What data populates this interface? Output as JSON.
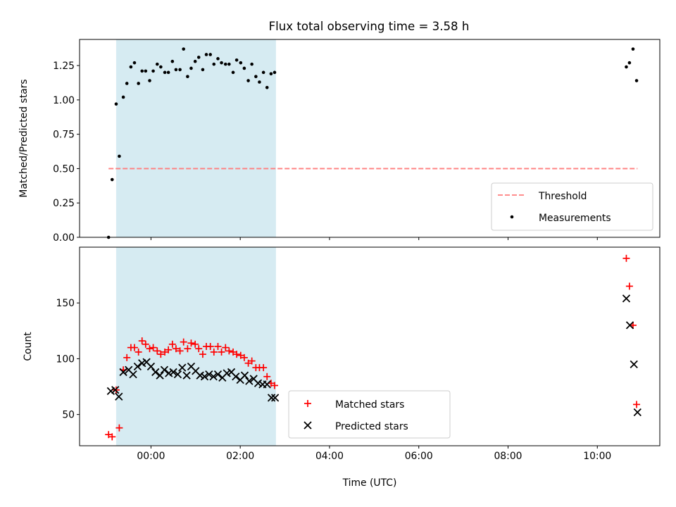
{
  "figure": {
    "title": "Flux total observing time = 3.58 h"
  },
  "colors": {
    "shade": "#add8e6",
    "threshold": "#ff7f7f",
    "matched": "#ff0000",
    "predicted": "#000000",
    "measurement": "#000000"
  },
  "chart_data": [
    {
      "type": "scatter",
      "title": "Flux total observing time = 3.58 h",
      "xlabel": "",
      "ylabel": "Matched/Predicted stars",
      "xlim": [
        -1.6,
        11.4
      ],
      "ylim": [
        0.0,
        1.44
      ],
      "x_tick_values": [
        0,
        2,
        4,
        6,
        8,
        10
      ],
      "x_tick_labels": [
        "",
        "",
        "",
        "",
        "",
        ""
      ],
      "y_tick_values": [
        0.0,
        0.25,
        0.5,
        0.75,
        1.0,
        1.25
      ],
      "y_tick_labels": [
        "0.00",
        "0.25",
        "0.50",
        "0.75",
        "1.00",
        "1.25"
      ],
      "shaded_x_range": [
        -0.78,
        2.8
      ],
      "threshold": {
        "name": "Threshold",
        "y": 0.5,
        "x_range": [
          -0.95,
          10.9
        ]
      },
      "legend": {
        "position": "lower-right",
        "entries": [
          "Threshold",
          "Measurements"
        ]
      },
      "series": [
        {
          "name": "Measurements",
          "marker": "dot",
          "x": [
            -0.95,
            -0.87,
            -0.78,
            -0.71,
            -0.62,
            -0.54,
            -0.45,
            -0.37,
            -0.28,
            -0.2,
            -0.12,
            -0.03,
            0.05,
            0.14,
            0.22,
            0.31,
            0.39,
            0.48,
            0.56,
            0.65,
            0.73,
            0.82,
            0.9,
            0.99,
            1.07,
            1.16,
            1.24,
            1.33,
            1.41,
            1.5,
            1.58,
            1.67,
            1.75,
            1.84,
            1.92,
            2.01,
            2.09,
            2.18,
            2.26,
            2.35,
            2.43,
            2.52,
            2.6,
            2.69,
            2.77,
            10.65,
            10.72,
            10.8,
            10.88
          ],
          "y": [
            0.0,
            0.42,
            0.97,
            0.59,
            1.02,
            1.12,
            1.24,
            1.27,
            1.12,
            1.21,
            1.21,
            1.14,
            1.21,
            1.26,
            1.24,
            1.2,
            1.2,
            1.28,
            1.22,
            1.22,
            1.37,
            1.17,
            1.23,
            1.28,
            1.31,
            1.22,
            1.33,
            1.33,
            1.26,
            1.3,
            1.27,
            1.26,
            1.26,
            1.2,
            1.29,
            1.27,
            1.23,
            1.14,
            1.26,
            1.17,
            1.13,
            1.2,
            1.09,
            1.19,
            1.2,
            1.24,
            1.27,
            1.37,
            1.14
          ]
        }
      ]
    },
    {
      "type": "scatter",
      "title": "",
      "xlabel": "Time (UTC)",
      "ylabel": "Count",
      "xlim": [
        -1.6,
        11.4
      ],
      "ylim": [
        22,
        200
      ],
      "x_tick_values": [
        0,
        2,
        4,
        6,
        8,
        10
      ],
      "x_tick_labels": [
        "00:00",
        "02:00",
        "04:00",
        "06:00",
        "08:00",
        "10:00"
      ],
      "y_tick_values": [
        50,
        100,
        150
      ],
      "y_tick_labels": [
        "50",
        "100",
        "150"
      ],
      "shaded_x_range": [
        -0.78,
        2.8
      ],
      "legend": {
        "position": "lower-center",
        "entries": [
          "Matched stars",
          "Predicted stars"
        ]
      },
      "series": [
        {
          "name": "Matched stars",
          "marker": "plus",
          "x": [
            -0.95,
            -0.87,
            -0.78,
            -0.71,
            -0.62,
            -0.54,
            -0.45,
            -0.37,
            -0.28,
            -0.2,
            -0.12,
            -0.03,
            0.05,
            0.14,
            0.22,
            0.31,
            0.39,
            0.48,
            0.56,
            0.65,
            0.73,
            0.82,
            0.9,
            0.99,
            1.07,
            1.16,
            1.24,
            1.33,
            1.41,
            1.5,
            1.58,
            1.67,
            1.75,
            1.84,
            1.92,
            2.01,
            2.09,
            2.18,
            2.26,
            2.35,
            2.43,
            2.52,
            2.6,
            2.69,
            2.77,
            10.65,
            10.72,
            10.8,
            10.88
          ],
          "y": [
            32,
            30,
            72,
            38,
            90,
            101,
            110,
            110,
            106,
            116,
            113,
            109,
            110,
            107,
            104,
            106,
            108,
            113,
            109,
            107,
            115,
            109,
            114,
            113,
            109,
            104,
            111,
            111,
            106,
            111,
            106,
            110,
            107,
            106,
            104,
            103,
            101,
            96,
            98,
            92,
            92,
            92,
            84,
            78,
            76,
            190,
            165,
            130,
            59
          ]
        },
        {
          "name": "Predicted stars",
          "marker": "x",
          "x": [
            -0.9,
            -0.8,
            -0.72,
            -0.62,
            -0.5,
            -0.4,
            -0.3,
            -0.2,
            -0.1,
            0.0,
            0.1,
            0.2,
            0.3,
            0.4,
            0.5,
            0.6,
            0.7,
            0.8,
            0.9,
            1.0,
            1.1,
            1.2,
            1.3,
            1.4,
            1.5,
            1.6,
            1.7,
            1.8,
            1.9,
            2.0,
            2.1,
            2.2,
            2.3,
            2.4,
            2.5,
            2.6,
            2.7,
            2.78,
            10.65,
            10.73,
            10.82,
            10.9
          ],
          "y": [
            71,
            72,
            66,
            88,
            90,
            86,
            93,
            96,
            97,
            93,
            88,
            85,
            90,
            87,
            88,
            86,
            92,
            85,
            93,
            89,
            85,
            84,
            86,
            84,
            86,
            83,
            87,
            88,
            84,
            81,
            85,
            80,
            82,
            78,
            77,
            77,
            65,
            65,
            154,
            130,
            95,
            52
          ]
        }
      ]
    }
  ]
}
